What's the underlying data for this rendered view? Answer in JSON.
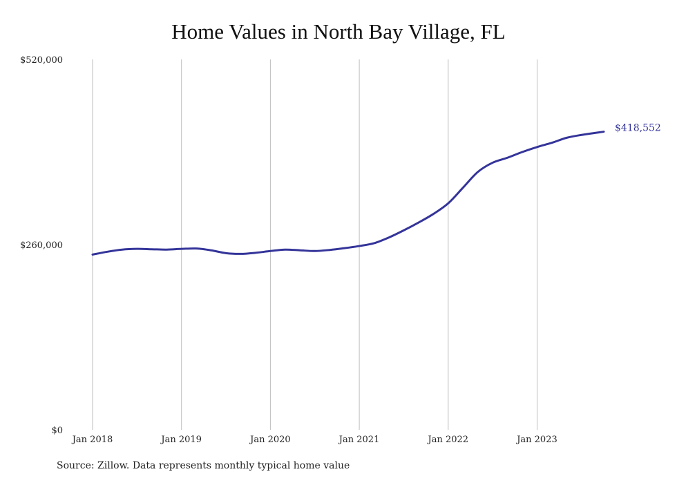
{
  "chart_data": {
    "type": "line",
    "title": "Home Values in North Bay Village, FL",
    "xlabel": "",
    "ylabel": "",
    "ylim": [
      0,
      520000
    ],
    "yticks": [
      {
        "value": 0,
        "label": "$0"
      },
      {
        "value": 260000,
        "label": "$260,000"
      },
      {
        "value": 520000,
        "label": "$520,000"
      }
    ],
    "xticks": [
      {
        "value": 2018.0,
        "label": "Jan 2018"
      },
      {
        "value": 2019.0,
        "label": "Jan 2019"
      },
      {
        "value": 2020.0,
        "label": "Jan 2020"
      },
      {
        "value": 2021.0,
        "label": "Jan 2021"
      },
      {
        "value": 2022.0,
        "label": "Jan 2022"
      },
      {
        "value": 2023.0,
        "label": "Jan 2023"
      }
    ],
    "xlim": [
      2018.0,
      2023.75
    ],
    "grid": "vertical",
    "line_color": "#34349a",
    "end_label": "$418,552",
    "series": [
      {
        "x": [
          2018.0,
          2018.167,
          2018.333,
          2018.5,
          2018.667,
          2018.833,
          2019.0,
          2019.167,
          2019.333,
          2019.5,
          2019.667,
          2019.833,
          2020.0,
          2020.167,
          2020.333,
          2020.5,
          2020.667,
          2020.833,
          2021.0,
          2021.167,
          2021.333,
          2021.5,
          2021.667,
          2021.833,
          2022.0,
          2022.167,
          2022.333,
          2022.5,
          2022.667,
          2022.833,
          2023.0,
          2023.167,
          2023.333,
          2023.5,
          2023.75
        ],
        "y": [
          246000,
          250000,
          253000,
          254000,
          253500,
          253000,
          254000,
          254500,
          252000,
          248000,
          247000,
          248500,
          251000,
          253000,
          252000,
          251000,
          252500,
          255000,
          258000,
          262000,
          270000,
          280000,
          291000,
          303000,
          318000,
          340000,
          362000,
          375000,
          382000,
          390000,
          397000,
          403000,
          410000,
          414000,
          418552
        ]
      }
    ]
  },
  "source": "Source: Zillow. Data represents monthly typical home value"
}
